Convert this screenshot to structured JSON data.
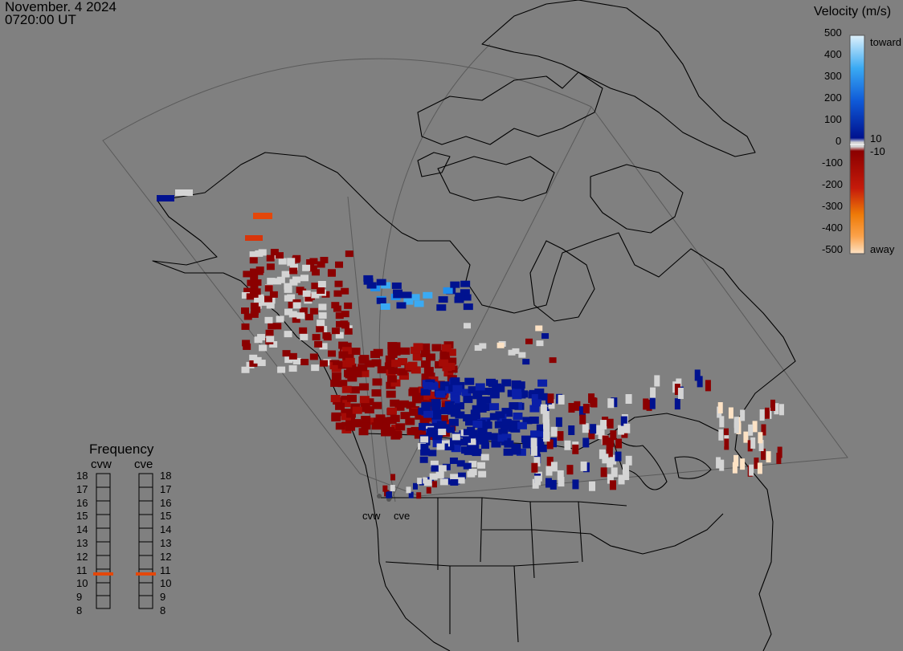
{
  "header": {
    "date": "November. 4 2024",
    "time": "0720:00 UT"
  },
  "velocity_scale": {
    "title": "Velocity (m/s)",
    "ticks": [
      "500",
      "400",
      "300",
      "200",
      "100",
      "0",
      "-100",
      "-200",
      "-300",
      "-400",
      "-500"
    ],
    "near_zero_labels": [
      "10",
      "-10"
    ],
    "toward_label": "toward",
    "away_label": "away",
    "colors": {
      "toward_high": "#dff1fb",
      "toward_mid": "#1e8ff0",
      "toward_low": "#00128f",
      "neutral": "#d4d4d4",
      "away_low": "#8b0000",
      "away_mid": "#e4470a",
      "away_high": "#fde2c4"
    }
  },
  "frequency": {
    "title": "Frequency",
    "radars": [
      {
        "name": "cvw",
        "selected_mhz": 11
      },
      {
        "name": "cve",
        "selected_mhz": 11
      }
    ],
    "levels": [
      "18",
      "17",
      "16",
      "15",
      "14",
      "13",
      "12",
      "11",
      "10",
      "9",
      "8"
    ]
  },
  "map": {
    "radar_labels": [
      "cvw",
      "cve"
    ],
    "colors": {
      "background": "#808080",
      "coastline": "#000000",
      "fov_outline": "#5a5a5a"
    }
  }
}
